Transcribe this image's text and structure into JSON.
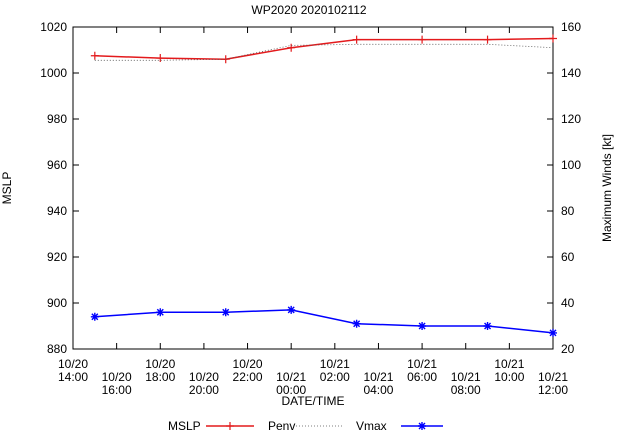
{
  "chart_data": {
    "type": "line",
    "title": "WP2020 2020102112",
    "xlabel": "DATE/TIME",
    "ylabel_left": "MSLP",
    "ylabel_right": "Maximum Winds [kt]",
    "ylim_left": [
      880,
      1020
    ],
    "ylim_right": [
      20,
      160
    ],
    "yticks_left": [
      880,
      900,
      920,
      940,
      960,
      980,
      1000,
      1020
    ],
    "yticks_right": [
      20,
      40,
      60,
      80,
      100,
      120,
      140,
      160
    ],
    "xlim_hours": [
      0,
      22
    ],
    "xticks": [
      {
        "hour": 0,
        "date": "10/20",
        "time": "14:00"
      },
      {
        "hour": 2,
        "date": "10/20",
        "time": "16:00"
      },
      {
        "hour": 4,
        "date": "10/20",
        "time": "18:00"
      },
      {
        "hour": 6,
        "date": "10/20",
        "time": "20:00"
      },
      {
        "hour": 8,
        "date": "10/20",
        "time": "22:00"
      },
      {
        "hour": 10,
        "date": "10/21",
        "time": "00:00"
      },
      {
        "hour": 12,
        "date": "10/21",
        "time": "02:00"
      },
      {
        "hour": 14,
        "date": "10/21",
        "time": "04:00"
      },
      {
        "hour": 16,
        "date": "10/21",
        "time": "06:00"
      },
      {
        "hour": 18,
        "date": "10/21",
        "time": "08:00"
      },
      {
        "hour": 20,
        "date": "10/21",
        "time": "10:00"
      },
      {
        "hour": 22,
        "date": "10/21",
        "time": "12:00"
      }
    ],
    "series": [
      {
        "name": "MSLP",
        "axis": "left",
        "color": "#e31a1c",
        "style": "line-plus",
        "x": [
          1,
          4,
          7,
          10,
          13,
          16,
          19,
          22
        ],
        "values": [
          1007.5,
          1006.5,
          1006,
          1011,
          1014.5,
          1014.5,
          1014.5,
          1015
        ]
      },
      {
        "name": "Penv",
        "axis": "left",
        "color": "#555555",
        "style": "dotted",
        "x": [
          1,
          4,
          7,
          10,
          13,
          16,
          19,
          22
        ],
        "values": [
          1005.5,
          1005.5,
          1006,
          1012,
          1012.5,
          1012.5,
          1012.5,
          1011
        ]
      },
      {
        "name": "Vmax",
        "axis": "right",
        "color": "#0000ff",
        "style": "line-star",
        "x": [
          1,
          4,
          7,
          10,
          13,
          16,
          19,
          22
        ],
        "values": [
          34,
          36,
          36,
          37,
          31,
          30,
          30,
          27
        ]
      }
    ],
    "legend": [
      {
        "label": "MSLP",
        "sample": "",
        "color": "#000000"
      },
      {
        "label": "Penv",
        "sample": "line-plus",
        "color": "#e31a1c"
      },
      {
        "label": "Vmax",
        "sample": "dotted",
        "color": "#555555"
      },
      {
        "label": "",
        "sample": "line-star",
        "color": "#0000ff"
      }
    ],
    "legend_placement": "bottom"
  }
}
